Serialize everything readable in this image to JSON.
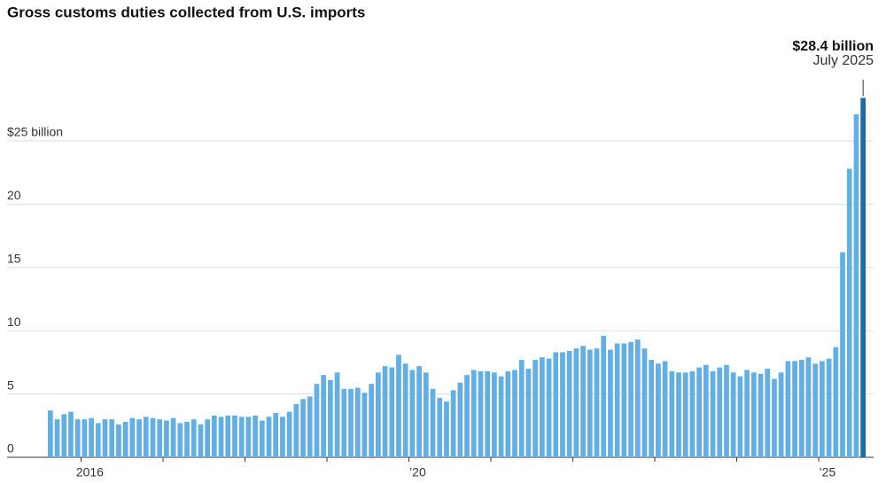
{
  "chart_data": {
    "type": "bar",
    "title": "Gross customs duties collected from U.S. imports",
    "annotation": {
      "value_label": "$28.4 billion",
      "date": "July 2025"
    },
    "categories": [
      null,
      null,
      null,
      null,
      null,
      "2016",
      null,
      null,
      null,
      null,
      null,
      null,
      null,
      null,
      null,
      null,
      null,
      null,
      null,
      null,
      null,
      null,
      null,
      null,
      null,
      null,
      null,
      null,
      null,
      null,
      null,
      null,
      null,
      null,
      null,
      null,
      null,
      null,
      null,
      null,
      null,
      null,
      null,
      null,
      null,
      null,
      null,
      null,
      null,
      null,
      null,
      null,
      null,
      "’20",
      null,
      null,
      null,
      null,
      null,
      null,
      null,
      null,
      null,
      null,
      null,
      null,
      null,
      null,
      null,
      null,
      null,
      null,
      null,
      null,
      null,
      null,
      null,
      null,
      null,
      null,
      null,
      null,
      null,
      null,
      null,
      null,
      null,
      null,
      null,
      null,
      null,
      null,
      null,
      null,
      null,
      null,
      null,
      null,
      null,
      null,
      null,
      null,
      null,
      null,
      null,
      null,
      null,
      null,
      null,
      null,
      null,
      null,
      null,
      "’25",
      null,
      null,
      null,
      null,
      null,
      null
    ],
    "values": [
      3.7,
      3.0,
      3.4,
      3.6,
      3.0,
      3.0,
      3.1,
      2.7,
      3.0,
      3.0,
      2.6,
      2.8,
      3.1,
      3.0,
      3.2,
      3.1,
      3.0,
      2.9,
      3.1,
      2.7,
      2.8,
      3.0,
      2.6,
      3.0,
      3.3,
      3.2,
      3.3,
      3.3,
      3.2,
      3.2,
      3.3,
      2.9,
      3.2,
      3.5,
      3.2,
      3.6,
      4.2,
      4.6,
      4.8,
      5.8,
      6.5,
      6.1,
      6.7,
      5.4,
      5.4,
      5.5,
      5.1,
      5.8,
      6.7,
      7.2,
      7.1,
      8.1,
      7.4,
      6.9,
      7.2,
      6.7,
      5.4,
      4.7,
      4.4,
      5.3,
      5.9,
      6.5,
      6.9,
      6.8,
      6.8,
      6.7,
      6.4,
      6.8,
      6.9,
      7.7,
      7.0,
      7.7,
      7.9,
      7.8,
      8.3,
      8.3,
      8.4,
      8.6,
      8.8,
      8.5,
      8.6,
      9.6,
      8.5,
      9.0,
      9.0,
      9.1,
      9.3,
      8.6,
      7.7,
      7.4,
      7.6,
      6.8,
      6.7,
      6.7,
      6.8,
      7.1,
      7.3,
      6.8,
      7.1,
      7.3,
      6.7,
      6.4,
      6.9,
      6.7,
      6.6,
      7.0,
      6.2,
      6.7,
      7.6,
      7.6,
      7.7,
      7.9,
      7.4,
      7.6,
      7.8,
      8.7,
      16.2,
      22.8,
      27.1,
      28.4
    ],
    "color": "#63aee3",
    "highlight_color": "#1d6aa8",
    "ylim": [
      0,
      33
    ],
    "yticks": [
      0,
      5,
      10,
      15,
      20,
      {
        "value": 25,
        "label": "$25 billion"
      }
    ],
    "grid": true
  }
}
